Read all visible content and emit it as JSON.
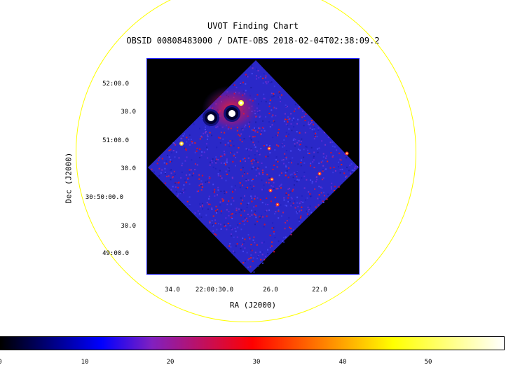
{
  "title": "UVOT Finding Chart",
  "subtitle": "OBSID 00808483000 / DATE-OBS 2018-02-04T02:38:09.2",
  "axes": {
    "xlabel": "RA (J2000)",
    "ylabel": "Dec (J2000)",
    "ra_ticks": [
      "34.0",
      "22:00:30.0",
      "26.0",
      "22.0"
    ],
    "dec_ticks": [
      "52:00.0",
      "30.0",
      "51:00.0",
      "30.0",
      "30:50:00.0",
      "30.0",
      "49:00.0"
    ]
  },
  "colorbar": {
    "ticks": [
      "0",
      "10",
      "20",
      "30",
      "40",
      "50"
    ],
    "colors": [
      "#000000",
      "#0000ff",
      "#8020c0",
      "#ff0000",
      "#ffff00",
      "#ffffff"
    ]
  },
  "colors": {
    "fov_circle": "#ffff00",
    "frame": "#2020ff",
    "background": "#000000"
  }
}
